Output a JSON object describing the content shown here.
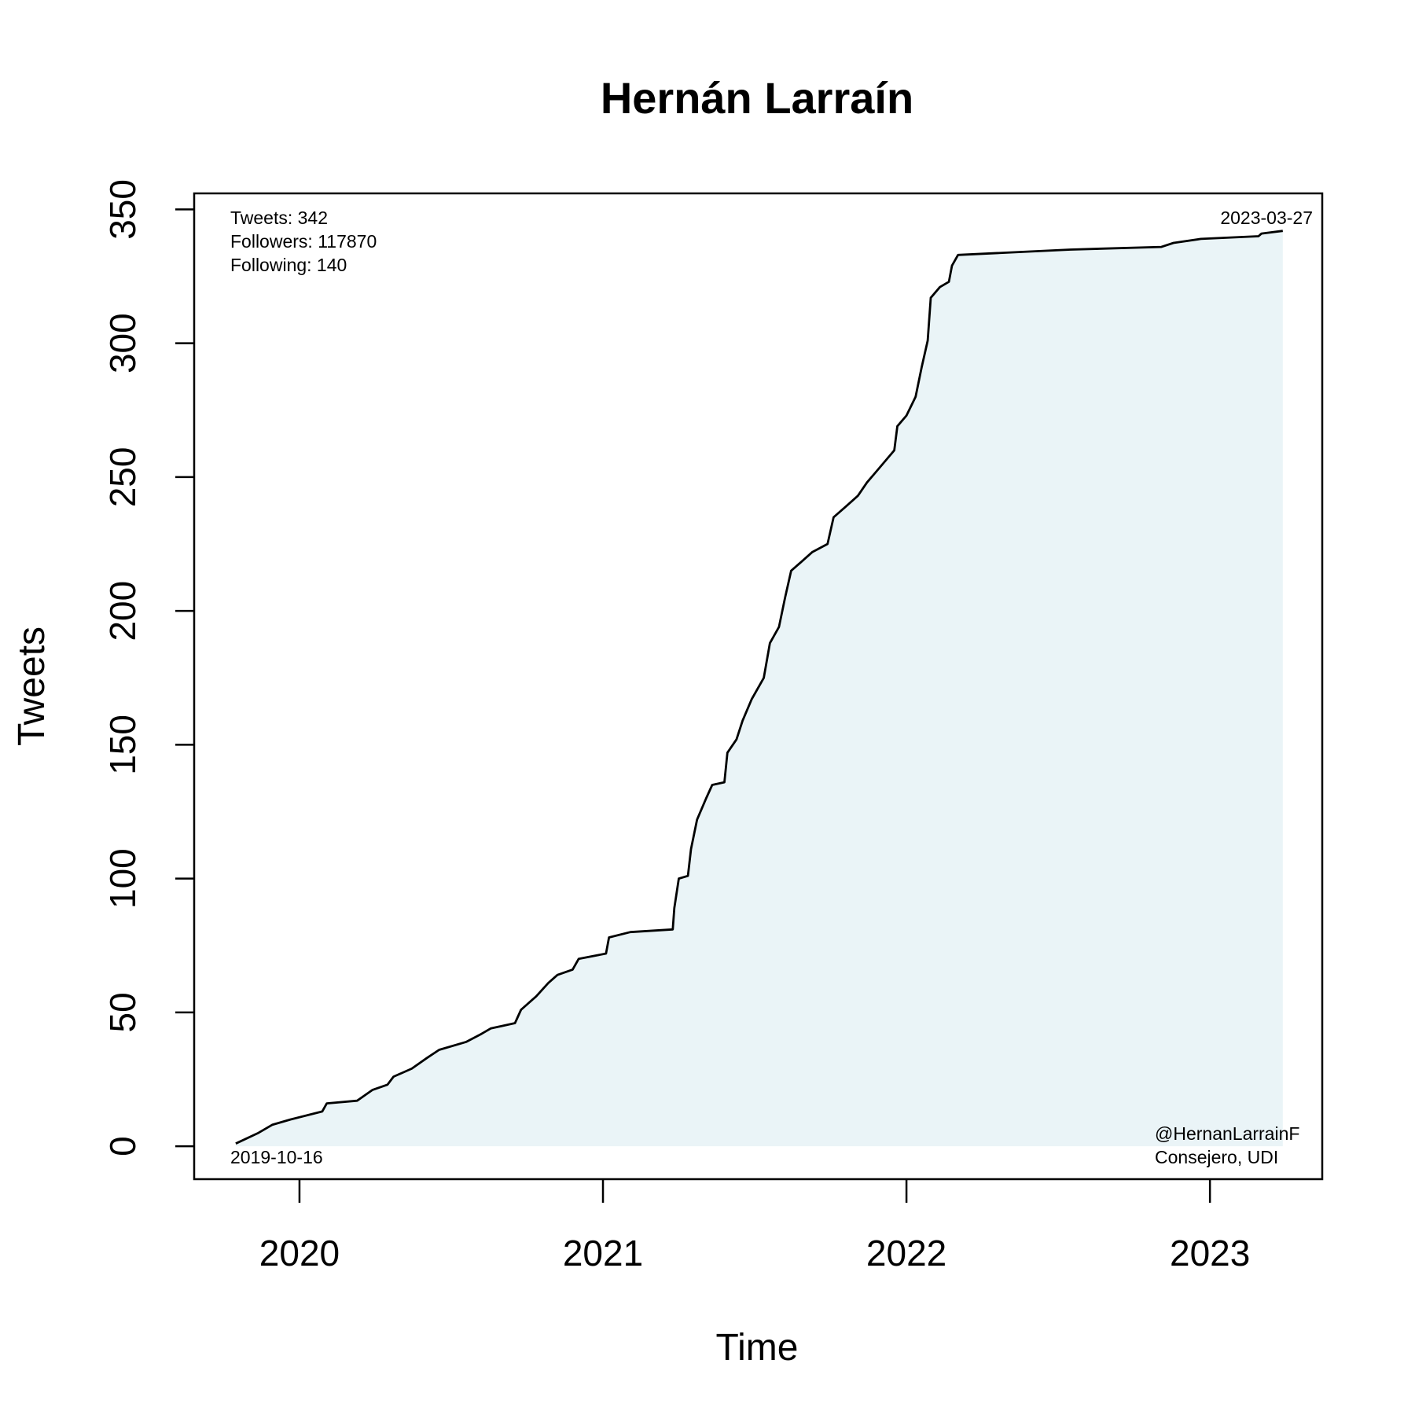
{
  "chart_data": {
    "type": "line",
    "title": "Hernán Larraín",
    "x_label": "Time",
    "y_label": "Tweets",
    "annotations": {
      "stats": [
        "Tweets: 342",
        "Followers: 117870",
        "Following: 140"
      ],
      "start_date": "2019-10-16",
      "end_date": "2023-03-27",
      "account": [
        "@HernanLarrainF",
        "Consejero, UDI"
      ]
    },
    "fill_color": "#eaf4f7",
    "xlim": [
      2019.653,
      2023.37
    ],
    "xticks": [
      2020,
      2021,
      2022,
      2023
    ],
    "ylim": [
      -12.3,
      356
    ],
    "yticks": [
      0,
      50,
      100,
      150,
      200,
      250,
      300,
      350
    ],
    "grid": false,
    "series": [
      {
        "name": "Tweets",
        "color": "#000000",
        "x": [
          2019.79,
          2019.865,
          2019.91,
          2019.97,
          2020.075,
          2020.09,
          2020.19,
          2020.24,
          2020.29,
          2020.31,
          2020.37,
          2020.42,
          2020.46,
          2020.55,
          2020.6,
          2020.63,
          2020.71,
          2020.73,
          2020.78,
          2020.82,
          2020.85,
          2020.9,
          2020.92,
          2021.01,
          2021.02,
          2021.09,
          2021.23,
          2021.235,
          2021.25,
          2021.28,
          2021.29,
          2021.31,
          2021.34,
          2021.36,
          2021.4,
          2021.41,
          2021.44,
          2021.46,
          2021.49,
          2021.53,
          2021.55,
          2021.58,
          2021.6,
          2021.62,
          2021.65,
          2021.69,
          2021.74,
          2021.76,
          2021.8,
          2021.84,
          2021.87,
          2021.9,
          2021.96,
          2021.97,
          2022.0,
          2022.03,
          2022.05,
          2022.07,
          2022.08,
          2022.11,
          2022.14,
          2022.15,
          2022.17,
          2022.54,
          2022.84,
          2022.88,
          2022.97,
          2023.16,
          2023.17,
          2023.24
        ],
        "values": [
          1,
          5,
          8,
          10,
          13,
          16,
          17,
          21,
          23,
          26,
          29,
          33,
          36,
          39,
          42,
          44,
          46,
          51,
          56,
          61,
          64,
          66,
          70,
          72,
          78,
          80,
          81,
          89,
          100,
          101,
          111,
          122,
          130,
          135,
          136,
          147,
          152,
          159,
          167,
          175,
          188,
          194,
          205,
          215,
          218,
          222,
          225,
          235,
          239,
          243,
          248,
          252,
          260,
          269,
          273,
          280,
          291,
          301,
          317,
          321,
          323,
          329,
          333,
          335,
          336,
          337.5,
          339,
          340,
          341,
          342
        ]
      }
    ]
  }
}
